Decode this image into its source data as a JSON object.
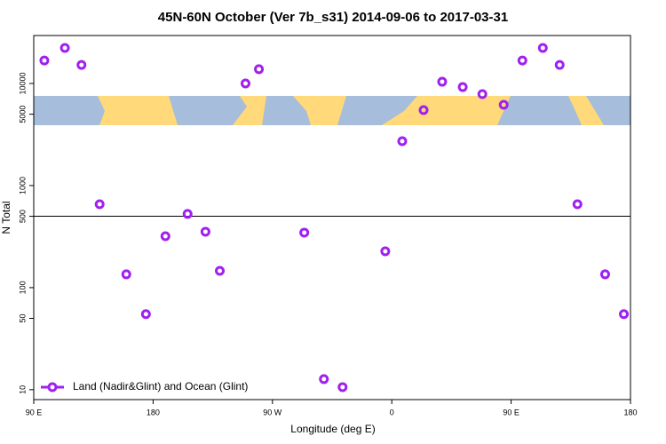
{
  "chart_data": {
    "type": "scatter",
    "title": "45N-60N October (Ver 7b_s31)   2014-09-06 to 2017-03-31",
    "x_label": "Longitude (deg E)",
    "y_label": "N Total",
    "log_y": true,
    "legend_position": "lower left",
    "xlim": [
      90,
      540
    ],
    "xticks": [
      {
        "value": 90,
        "label": "90 E"
      },
      180,
      {
        "value": 270,
        "label": "90 W"
      },
      {
        "value": 360,
        "label": "0"
      },
      {
        "value": 450,
        "label": "90 E"
      },
      {
        "value": 540,
        "label": "180"
      }
    ],
    "ylim": [
      8,
      29500
    ],
    "yticks": [
      10,
      50,
      100,
      500,
      1000,
      5000,
      10000
    ],
    "reference_line": 500,
    "series": [
      {
        "name": "Land (Nadir&Glint) and Ocean (Glint)",
        "color": "#a020f0",
        "x": [
          98,
          113.5,
          126,
          139.7,
          159.8,
          174.6,
          189.3,
          206,
          219.5,
          230.3,
          249.7,
          259.8,
          294,
          308.8,
          322.9,
          355.1,
          367.9,
          384,
          398,
          413.5,
          428.3,
          444.4,
          458.5,
          473.9,
          486.6,
          500,
          520.9,
          535
        ],
        "values": [
          16800,
          22300,
          15200,
          656,
          135,
          55,
          319,
          527,
          353,
          146,
          10000,
          13800,
          346,
          12.7,
          10.6,
          227,
          2720,
          5480,
          10400,
          9220,
          7870,
          6180,
          16800,
          22300,
          15200,
          656,
          135,
          55
        ]
      }
    ]
  }
}
